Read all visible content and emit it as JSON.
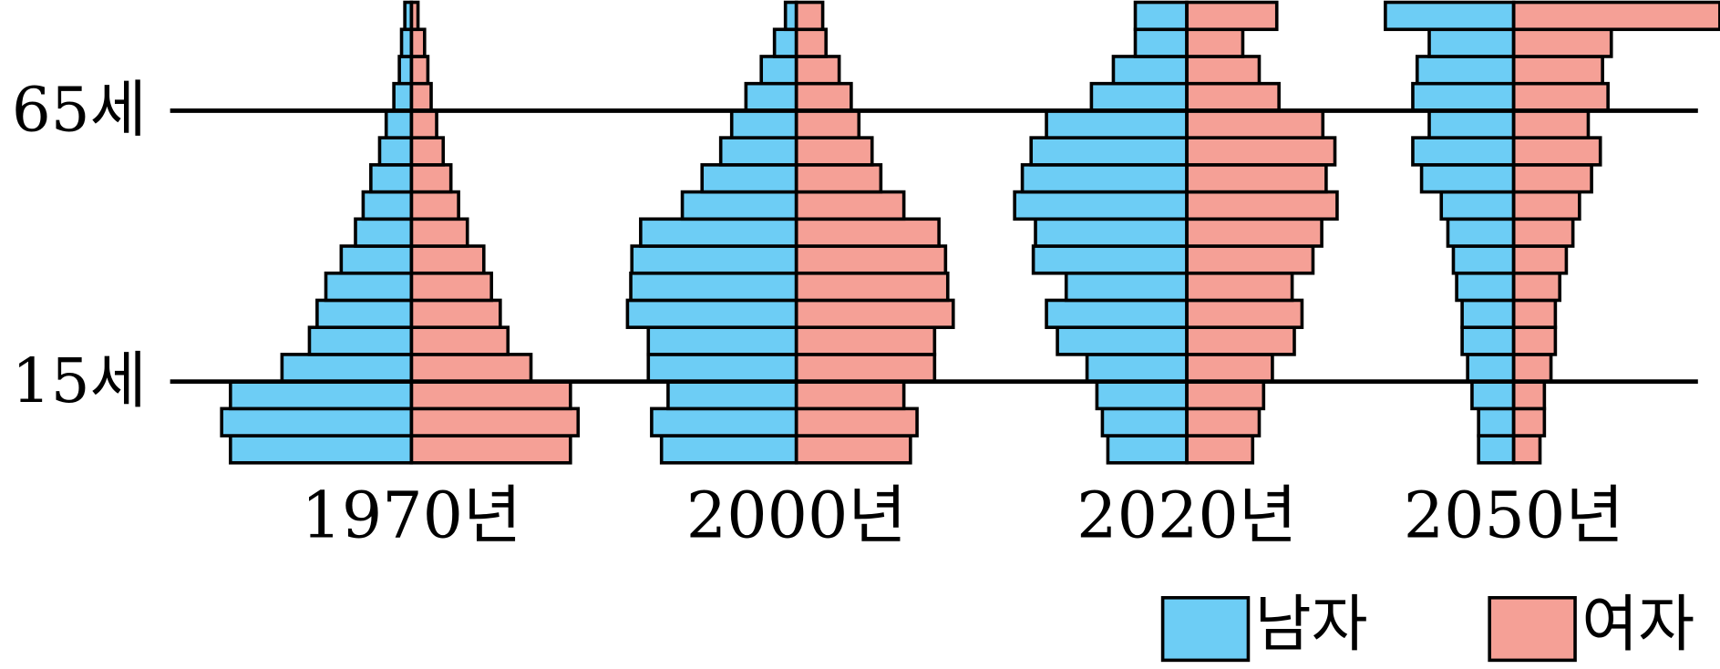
{
  "chart_data": {
    "type": "population-pyramid",
    "age_labels": [
      "15세",
      "65세"
    ],
    "series": [
      {
        "name": "남자",
        "color": "#6dcdf5"
      },
      {
        "name": "여자",
        "color": "#f5a096"
      }
    ],
    "pyramids": [
      {
        "label": "1970년",
        "values": [
          [
            165,
            173,
            165,
            118,
            93,
            86,
            78,
            64,
            51,
            44,
            37,
            29,
            23,
            16,
            11,
            9,
            6
          ],
          [
            145,
            152,
            145,
            109,
            88,
            81,
            73,
            66,
            51,
            43,
            36,
            29,
            23,
            18,
            15,
            12,
            6
          ]
        ]
      },
      {
        "label": "2000년",
        "values": [
          [
            123,
            132,
            117,
            135,
            135,
            154,
            151,
            150,
            142,
            104,
            86,
            69,
            59,
            46,
            32,
            20,
            10
          ],
          [
            104,
            110,
            98,
            126,
            126,
            143,
            138,
            136,
            130,
            98,
            77,
            69,
            57,
            50,
            39,
            27,
            24
          ]
        ]
      },
      {
        "label": "2020년",
        "values": [
          [
            72,
            77,
            82,
            91,
            118,
            128,
            110,
            140,
            138,
            157,
            150,
            142,
            128,
            87,
            67,
            47,
            47
          ],
          [
            60,
            66,
            70,
            78,
            98,
            105,
            96,
            115,
            123,
            137,
            127,
            135,
            124,
            84,
            66,
            51,
            82
          ]
        ]
      },
      {
        "label": "2050년",
        "values": [
          [
            32,
            32,
            38,
            42,
            47,
            47,
            52,
            55,
            60,
            66,
            84,
            92,
            77,
            92,
            88,
            77,
            117
          ],
          [
            24,
            28,
            28,
            34,
            38,
            38,
            42,
            48,
            54,
            60,
            71,
            79,
            68,
            86,
            81,
            89,
            188
          ]
        ]
      }
    ]
  }
}
